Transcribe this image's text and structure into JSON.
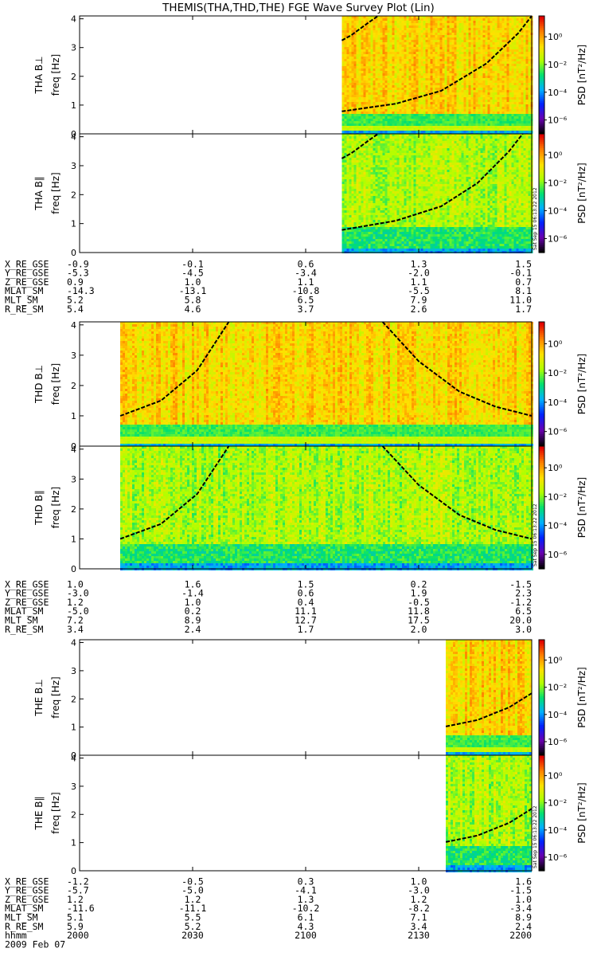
{
  "title": "THEMIS(THA,THD,THE) FGE Wave Survey Plot (Lin)",
  "date_label": "2009 Feb 07",
  "stamp": "Sat Sep 15 06:13:22 2012",
  "colorbar": {
    "label": "PSD [nT²/Hz]",
    "tick_labels": [
      "10⁰",
      "10⁻²",
      "10⁻⁴",
      "10⁻⁶"
    ],
    "log10_range": [
      -7,
      1.5
    ],
    "colors": [
      "#000000",
      "#6a00b0",
      "#0020ff",
      "#00b0ff",
      "#00e070",
      "#b0ff00",
      "#ffe000",
      "#ff8000",
      "#e00000"
    ]
  },
  "chart_data": {
    "type": "heatmap",
    "time_ticks": [
      "2000",
      "2030",
      "2100",
      "2130",
      "2200"
    ],
    "freq_ticks": [
      "0",
      "1",
      "2",
      "3",
      "4"
    ],
    "ylim": [
      0,
      4.1
    ],
    "panels": [
      {
        "probe": "THA",
        "component": "B⊥",
        "label": "THA B⊥",
        "ylabel": "freq [Hz]",
        "data_start": 0.58,
        "data_end": 1.0,
        "texture": "perp",
        "curve": [
          [
            0.58,
            0.78
          ],
          [
            0.7,
            1.05
          ],
          [
            0.8,
            1.5
          ],
          [
            0.9,
            2.45
          ],
          [
            0.97,
            3.5
          ],
          [
            1.0,
            4.1
          ]
        ],
        "harmonic": [
          [
            0.58,
            3.25
          ],
          [
            0.6,
            3.42
          ],
          [
            0.62,
            3.65
          ],
          [
            0.64,
            3.88
          ],
          [
            0.66,
            4.1
          ]
        ]
      },
      {
        "probe": "THA",
        "component": "B∥",
        "label": "THA B∥",
        "ylabel": "freq [Hz]",
        "data_start": 0.58,
        "data_end": 1.0,
        "texture": "par",
        "curve": [
          [
            0.58,
            0.78
          ],
          [
            0.7,
            1.1
          ],
          [
            0.8,
            1.6
          ],
          [
            0.88,
            2.4
          ],
          [
            0.95,
            3.5
          ],
          [
            0.98,
            4.1
          ]
        ],
        "harmonic": [
          [
            0.58,
            3.25
          ],
          [
            0.6,
            3.42
          ],
          [
            0.62,
            3.65
          ],
          [
            0.64,
            3.88
          ],
          [
            0.66,
            4.1
          ]
        ]
      },
      {
        "probe": "THD",
        "component": "B⊥",
        "label": "THD B⊥",
        "ylabel": "freq [Hz]",
        "data_start": 0.09,
        "data_end": 1.0,
        "texture": "perp",
        "curve": [
          [
            0.09,
            1.0
          ],
          [
            0.18,
            1.5
          ],
          [
            0.26,
            2.5
          ],
          [
            0.33,
            4.1
          ]
        ],
        "curve2": [
          [
            0.67,
            4.1
          ],
          [
            0.75,
            2.8
          ],
          [
            0.84,
            1.8
          ],
          [
            0.92,
            1.3
          ],
          [
            1.0,
            1.0
          ]
        ]
      },
      {
        "probe": "THD",
        "component": "B∥",
        "label": "THD B∥",
        "ylabel": "freq [Hz]",
        "data_start": 0.09,
        "data_end": 1.0,
        "texture": "par",
        "curve": [
          [
            0.09,
            1.0
          ],
          [
            0.18,
            1.5
          ],
          [
            0.26,
            2.5
          ],
          [
            0.33,
            4.1
          ]
        ],
        "curve2": [
          [
            0.67,
            4.1
          ],
          [
            0.75,
            2.8
          ],
          [
            0.84,
            1.8
          ],
          [
            0.92,
            1.3
          ],
          [
            1.0,
            1.0
          ]
        ]
      },
      {
        "probe": "THE",
        "component": "B⊥",
        "label": "THE B⊥",
        "ylabel": "freq [Hz]",
        "data_start": 0.81,
        "data_end": 1.0,
        "texture": "perp",
        "curve": [
          [
            0.81,
            1.02
          ],
          [
            0.88,
            1.25
          ],
          [
            0.95,
            1.7
          ],
          [
            1.0,
            2.2
          ]
        ]
      },
      {
        "probe": "THE",
        "component": "B∥",
        "label": "THE B∥",
        "ylabel": "freq [Hz]",
        "data_start": 0.81,
        "data_end": 1.0,
        "texture": "par",
        "curve": [
          [
            0.81,
            1.02
          ],
          [
            0.88,
            1.25
          ],
          [
            0.95,
            1.7
          ],
          [
            1.0,
            2.2
          ]
        ]
      }
    ],
    "ephemeris": [
      {
        "probe": "THA",
        "rows": [
          {
            "name": "X_RE_GSE",
            "values": [
              "-0.9",
              "-0.1",
              "0.6",
              "1.3",
              "1.5"
            ]
          },
          {
            "name": "Y_RE_GSE",
            "values": [
              "-5.3",
              "-4.5",
              "-3.4",
              "-2.0",
              "-0.1"
            ]
          },
          {
            "name": "Z_RE_GSE",
            "values": [
              "0.9",
              "1.0",
              "1.1",
              "1.1",
              "0.7"
            ]
          },
          {
            "name": "MLAT_SM",
            "values": [
              "-14.3",
              "-13.1",
              "-10.8",
              "-5.5",
              "8.1"
            ]
          },
          {
            "name": "MLT_SM",
            "values": [
              "5.2",
              "5.8",
              "6.5",
              "7.9",
              "11.0"
            ]
          },
          {
            "name": "R_RE_SM",
            "values": [
              "5.4",
              "4.6",
              "3.7",
              "2.6",
              "1.7"
            ]
          }
        ]
      },
      {
        "probe": "THD",
        "rows": [
          {
            "name": "X_RE_GSE",
            "values": [
              "1.0",
              "1.6",
              "1.5",
              "0.2",
              "-1.5"
            ]
          },
          {
            "name": "Y_RE_GSE",
            "values": [
              "-3.0",
              "-1.4",
              "0.6",
              "1.9",
              "2.3"
            ]
          },
          {
            "name": "Z_RE_GSE",
            "values": [
              "1.2",
              "1.0",
              "0.4",
              "-0.5",
              "-1.2"
            ]
          },
          {
            "name": "MLAT_SM",
            "values": [
              "-5.0",
              "0.2",
              "11.1",
              "11.8",
              "6.5"
            ]
          },
          {
            "name": "MLT_SM",
            "values": [
              "7.2",
              "8.9",
              "12.7",
              "17.5",
              "20.0"
            ]
          },
          {
            "name": "R_RE_SM",
            "values": [
              "3.4",
              "2.4",
              "1.7",
              "2.0",
              "3.0"
            ]
          }
        ]
      },
      {
        "probe": "THE",
        "rows": [
          {
            "name": "X_RE_GSE",
            "values": [
              "-1.2",
              "-0.5",
              "0.3",
              "1.0",
              "1.6"
            ]
          },
          {
            "name": "Y_RE_GSE",
            "values": [
              "-5.7",
              "-5.0",
              "-4.1",
              "-3.0",
              "-1.5"
            ]
          },
          {
            "name": "Z_RE_GSE",
            "values": [
              "1.2",
              "1.2",
              "1.3",
              "1.2",
              "1.0"
            ]
          },
          {
            "name": "MLAT_SM",
            "values": [
              "-11.6",
              "-11.1",
              "-10.2",
              "-8.2",
              "-3.4"
            ]
          },
          {
            "name": "MLT_SM",
            "values": [
              "5.1",
              "5.5",
              "6.1",
              "7.1",
              "8.9"
            ]
          },
          {
            "name": "R_RE_SM",
            "values": [
              "5.9",
              "5.2",
              "4.3",
              "3.4",
              "2.4"
            ]
          },
          {
            "name": "hhmm",
            "values": [
              "2000",
              "2030",
              "2100",
              "2130",
              "2200"
            ]
          }
        ]
      }
    ]
  }
}
